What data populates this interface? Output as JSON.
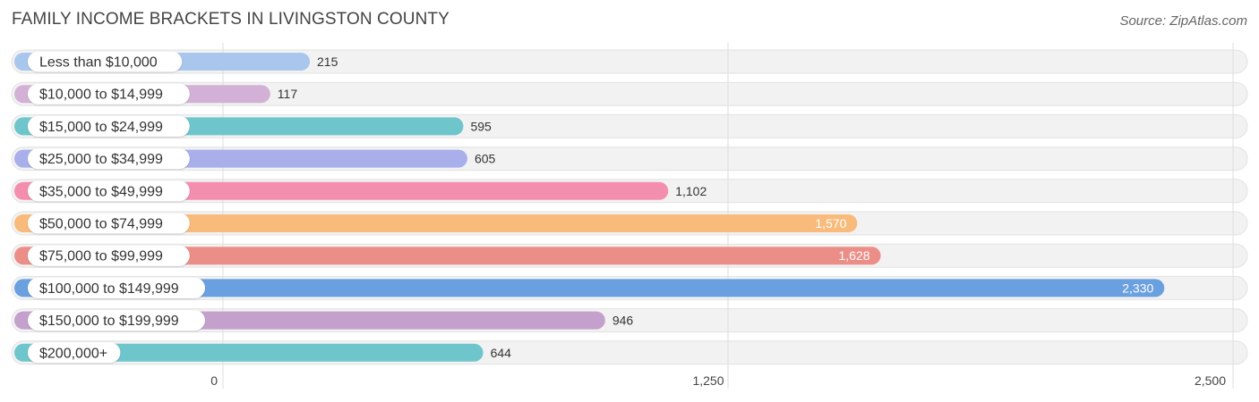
{
  "title": "FAMILY INCOME BRACKETS IN LIVINGSTON COUNTY",
  "source": "Source: ZipAtlas.com",
  "chart_data": {
    "type": "bar",
    "orientation": "horizontal",
    "title": "FAMILY INCOME BRACKETS IN LIVINGSTON COUNTY",
    "xlabel": "",
    "ylabel": "",
    "xlim": [
      0,
      2500
    ],
    "x_ticks": [
      0,
      1250,
      2500
    ],
    "x_tick_labels": [
      "0",
      "1,250",
      "2,500"
    ],
    "grid": true,
    "categories": [
      "Less than $10,000",
      "$10,000 to $14,999",
      "$15,000 to $24,999",
      "$25,000 to $34,999",
      "$35,000 to $49,999",
      "$50,000 to $74,999",
      "$75,000 to $99,999",
      "$100,000 to $149,999",
      "$150,000 to $199,999",
      "$200,000+"
    ],
    "values": [
      215,
      117,
      595,
      605,
      1102,
      1570,
      1628,
      2330,
      946,
      644
    ],
    "value_labels": [
      "215",
      "117",
      "595",
      "605",
      "1,102",
      "1,570",
      "1,628",
      "2,330",
      "946",
      "644"
    ],
    "colors": [
      "#a9c6ec",
      "#d3b1d6",
      "#6ec6cc",
      "#a9afea",
      "#f48eae",
      "#f9bb7b",
      "#ec8e88",
      "#6aa0e0",
      "#c4a0cc",
      "#6ec6cc"
    ]
  }
}
